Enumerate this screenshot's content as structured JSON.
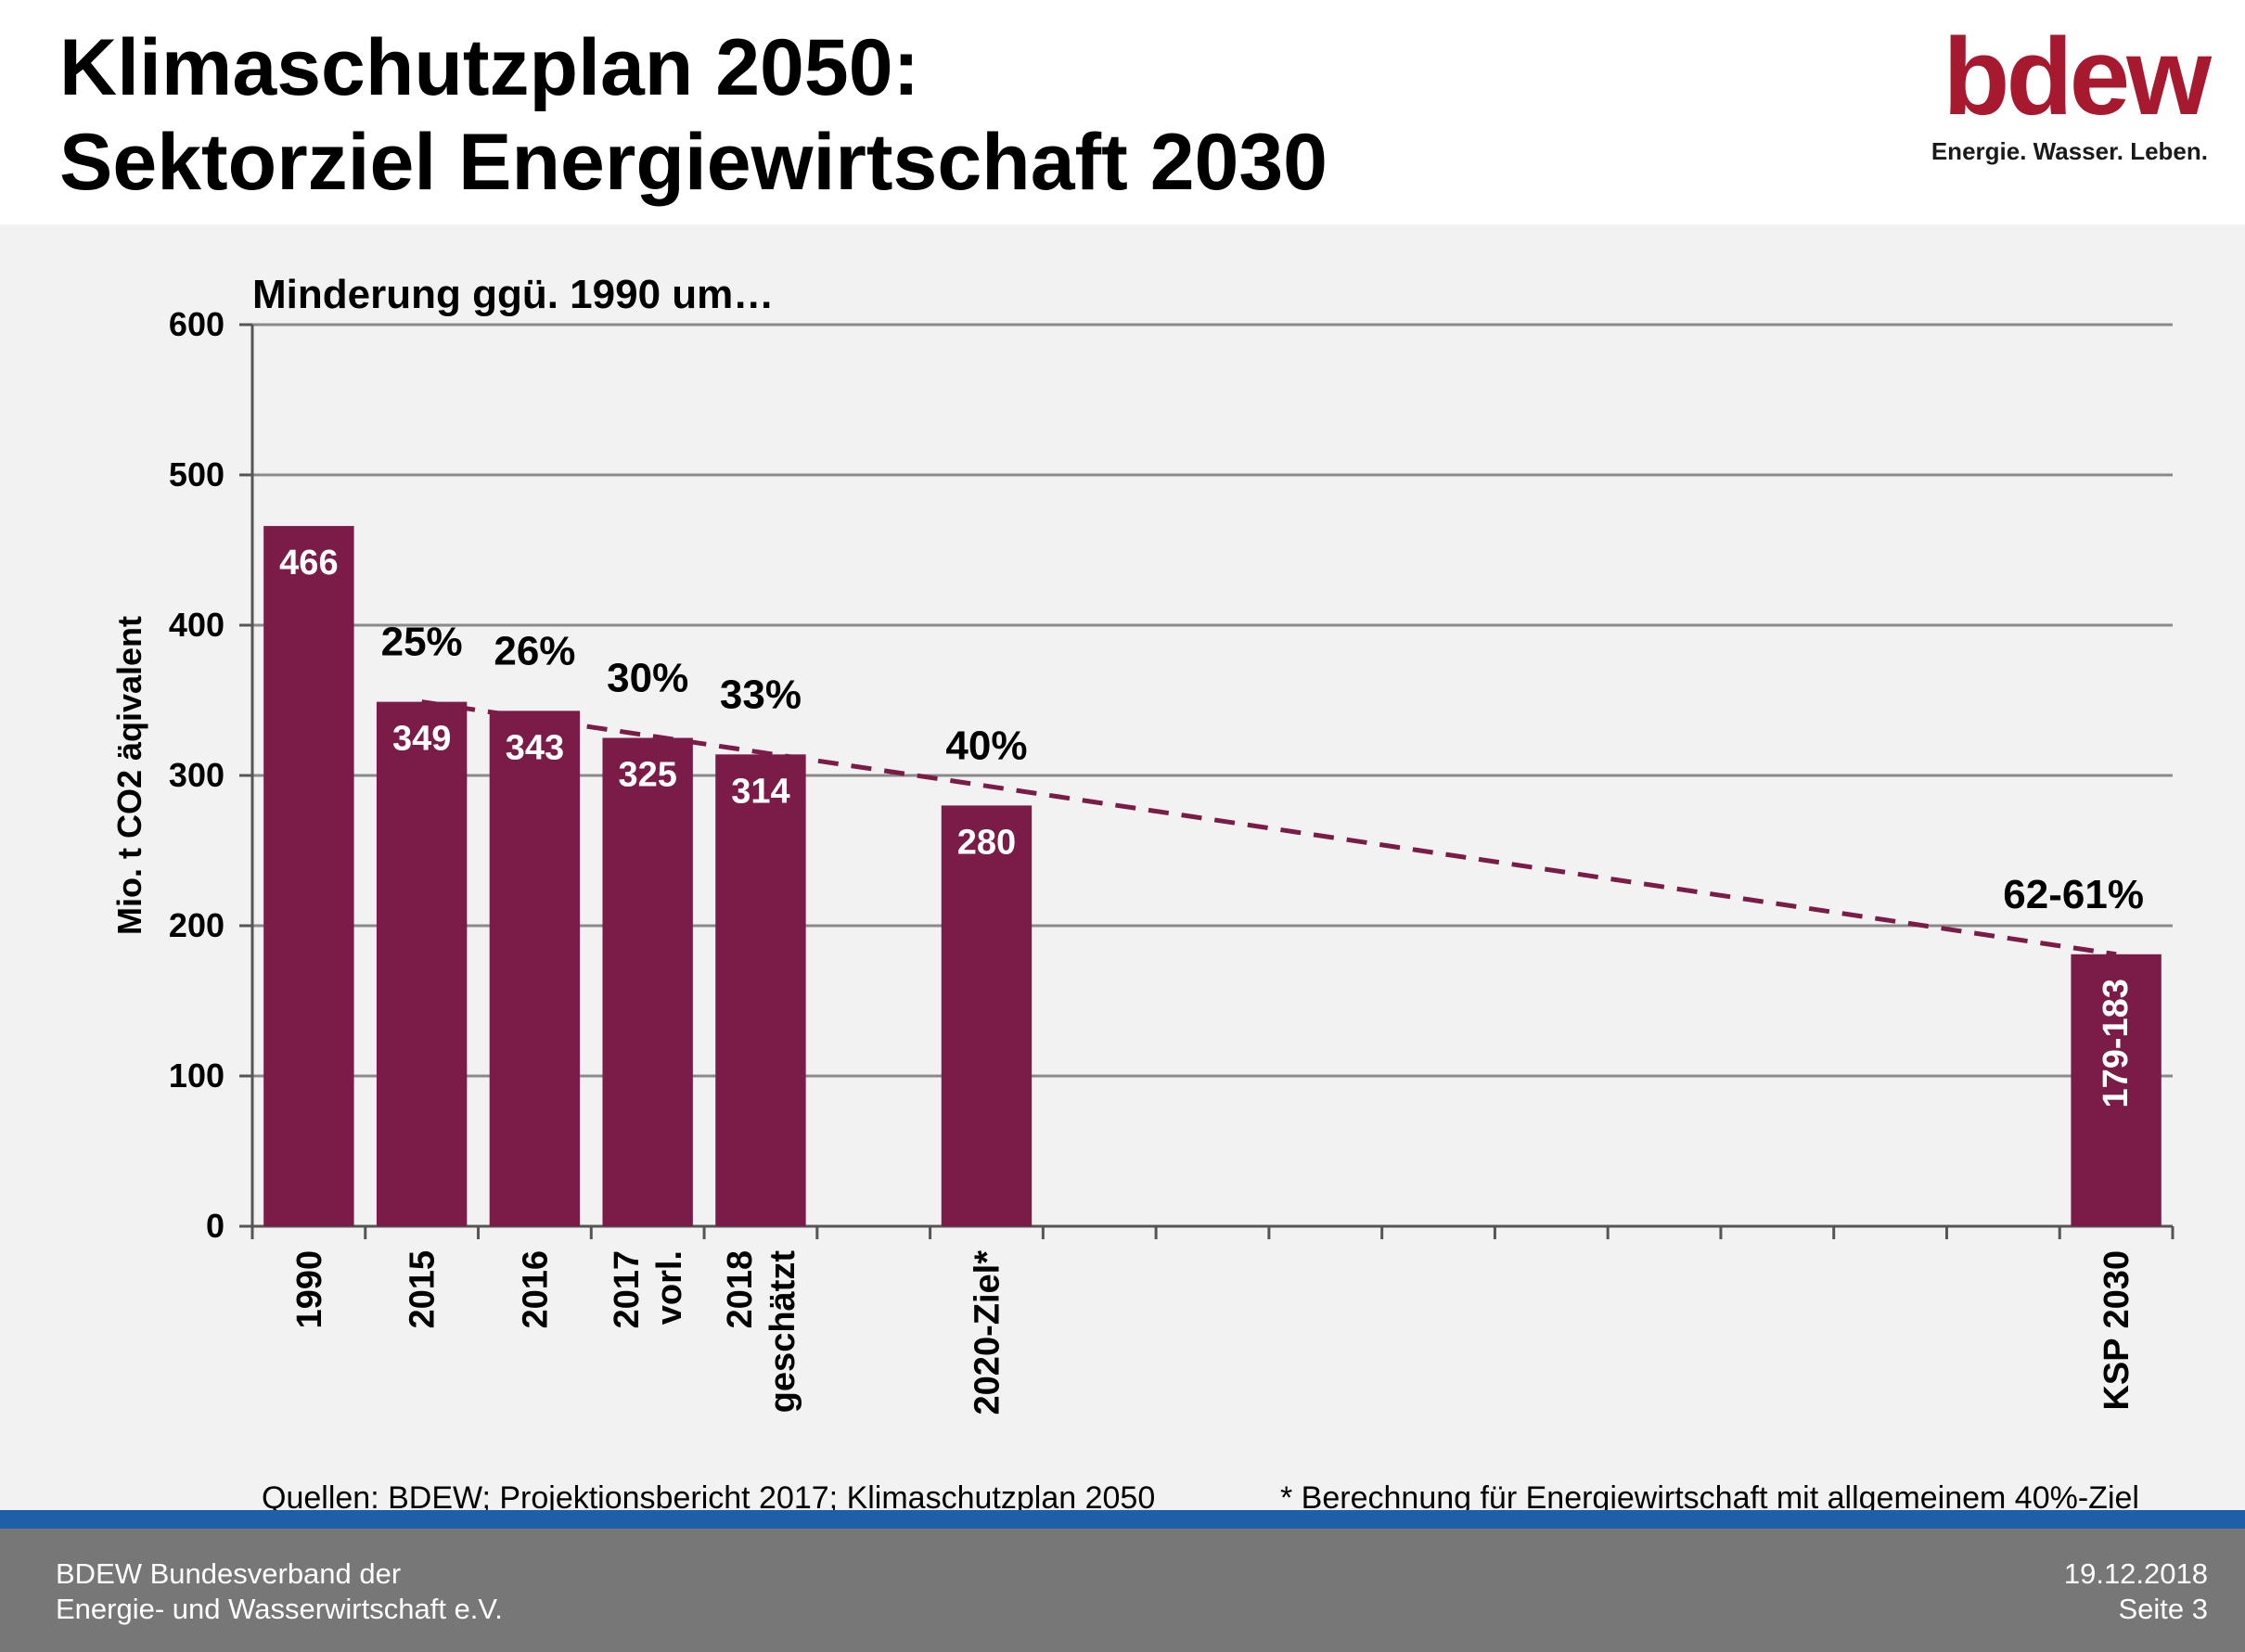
{
  "header": {
    "title_line1": "Klimaschutzplan 2050:",
    "title_line2": "Sektorziel Energiewirtschaft 2030",
    "logo_text": "bdew",
    "logo_tagline": "Energie. Wasser. Leben."
  },
  "chart_data": {
    "type": "bar",
    "title": "Minderung ggü. 1990 um…",
    "ylabel": "Mio. t CO2 äqivalent",
    "xlabel": "",
    "ylim": [
      0,
      600
    ],
    "yticks": [
      0,
      100,
      200,
      300,
      400,
      500,
      600
    ],
    "grid": true,
    "categories": [
      "1990",
      "2015",
      "2016",
      "2017 vorl.",
      "2018 geschätzt",
      "",
      "2020-Ziel*",
      "",
      "",
      "",
      "",
      "",
      "",
      "",
      "",
      "",
      "KSP 2030"
    ],
    "category_label_lines": [
      [
        "1990"
      ],
      [
        "2015"
      ],
      [
        "2016"
      ],
      [
        "2017",
        "vorl."
      ],
      [
        "2018",
        "geschätzt"
      ],
      [],
      [
        "2020-Ziel*"
      ],
      [],
      [],
      [],
      [],
      [],
      [],
      [],
      [],
      [],
      [
        "KSP 2030"
      ]
    ],
    "values": [
      466,
      349,
      343,
      325,
      314,
      null,
      280,
      null,
      null,
      null,
      null,
      null,
      null,
      null,
      null,
      null,
      181
    ],
    "value_labels": [
      "466",
      "349",
      "343",
      "325",
      "314",
      "",
      "280",
      "",
      "",
      "",
      "",
      "",
      "",
      "",
      "",
      "",
      "179-183"
    ],
    "reduction_labels": [
      "",
      "25%",
      "26%",
      "30%",
      "33%",
      "",
      "40%",
      "",
      "",
      "",
      "",
      "",
      "",
      "",
      "",
      "",
      "62-61%"
    ],
    "trend_line": {
      "style": "dashed",
      "from": {
        "category_index": 1,
        "value": 349
      },
      "to": {
        "category_index": 16,
        "value": 181
      }
    },
    "bar_color": "#7b1c48",
    "trend_color": "#7b1c48"
  },
  "sources": "Quellen: BDEW; Projektionsbericht 2017; Klimaschutzplan 2050",
  "footnote": "* Berechnung für Energiewirtschaft mit allgemeinem 40%-Ziel",
  "footer": {
    "org_line1": "BDEW Bundesverband der",
    "org_line2": "Energie- und Wasserwirtschaft e.V.",
    "date": "19.12.2018",
    "page": "Seite 3"
  }
}
